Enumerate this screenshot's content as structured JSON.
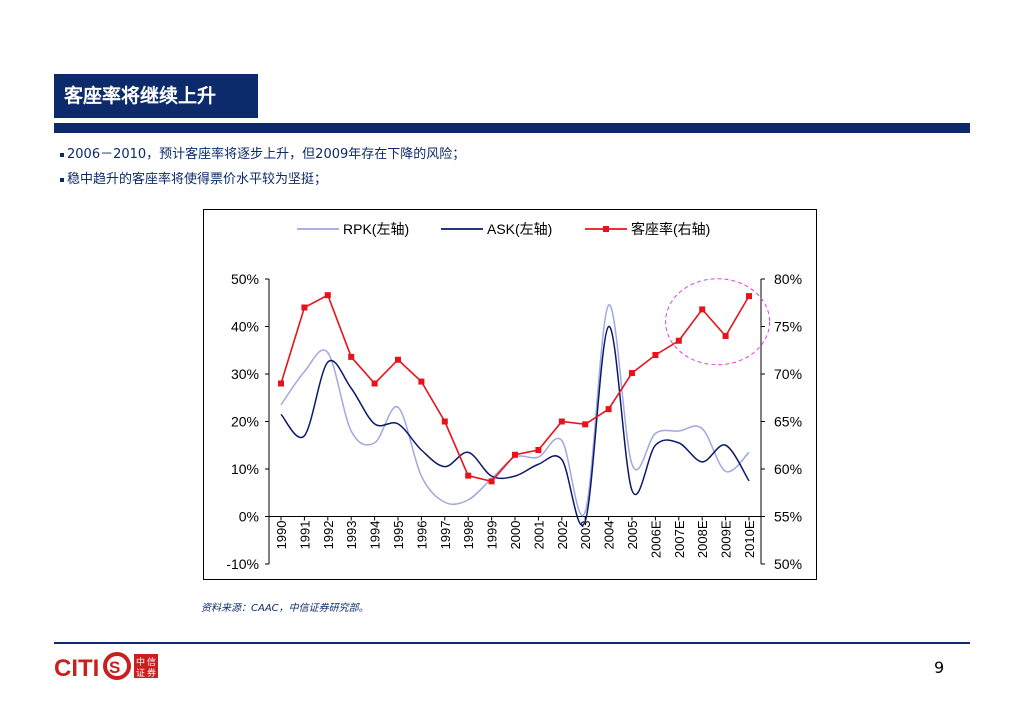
{
  "slide": {
    "title": "客座率将继续上升",
    "bullets": [
      "2006－2010，预计客座率将逐步上升，但2009年存在下降的风险；",
      "稳中趋升的客座率将使得票价水平较为坚挺；"
    ],
    "source": "资料来源：CAAC，中信证券研究部。",
    "page_number": "9",
    "logo": {
      "text": "CITICS",
      "badge": [
        "中",
        "信",
        "证",
        "券"
      ]
    }
  },
  "colors": {
    "navy": "#0d2b6b",
    "rpk": "#a0a8e0",
    "ask": "#0a1a6a",
    "load": "#e8121b",
    "ellipse": "#e040e0",
    "logo_red": "#c8201e"
  },
  "chart_data": {
    "type": "line",
    "categories": [
      "1990",
      "1991",
      "1992",
      "1993",
      "1994",
      "1995",
      "1996",
      "1997",
      "1998",
      "1999",
      "2000",
      "2001",
      "2002",
      "2003",
      "2004",
      "2005",
      "2006E",
      "2007E",
      "2008E",
      "2009E",
      "2010E"
    ],
    "y_left": {
      "ticks": [
        "50%",
        "40%",
        "30%",
        "20%",
        "10%",
        "0%",
        "-10%"
      ],
      "range": [
        -10,
        50
      ]
    },
    "y_right": {
      "ticks": [
        "80%",
        "75%",
        "70%",
        "65%",
        "60%",
        "55%",
        "50%"
      ],
      "range": [
        50,
        80
      ]
    },
    "series": [
      {
        "name": "RPK(左轴)",
        "axis": "left",
        "markers": false,
        "values": [
          23.5,
          30.5,
          34.5,
          18,
          15.5,
          23,
          8.5,
          3,
          3.5,
          8,
          12.5,
          12.5,
          16,
          1,
          44.5,
          11,
          17.5,
          18,
          18.5,
          9.5,
          13.5
        ]
      },
      {
        "name": "ASK(左轴)",
        "axis": "left",
        "markers": false,
        "values": [
          21.5,
          17,
          32.5,
          27,
          19.5,
          19.5,
          14,
          10.5,
          13.5,
          8.5,
          8.5,
          11,
          12,
          -1,
          40,
          5.5,
          15,
          15.5,
          11.5,
          15,
          7.5
        ]
      },
      {
        "name": "客座率(右轴)",
        "axis": "right",
        "markers": true,
        "values": [
          69,
          77,
          78.3,
          71.8,
          69,
          71.5,
          69.2,
          65,
          59.3,
          58.7,
          61.5,
          62,
          65,
          64.7,
          66.3,
          70.1,
          72,
          73.5,
          76.8,
          74,
          78.2
        ]
      }
    ],
    "legend": "top-center",
    "annotation": "dashed-ellipse-highlighting-2008E-2010E"
  }
}
